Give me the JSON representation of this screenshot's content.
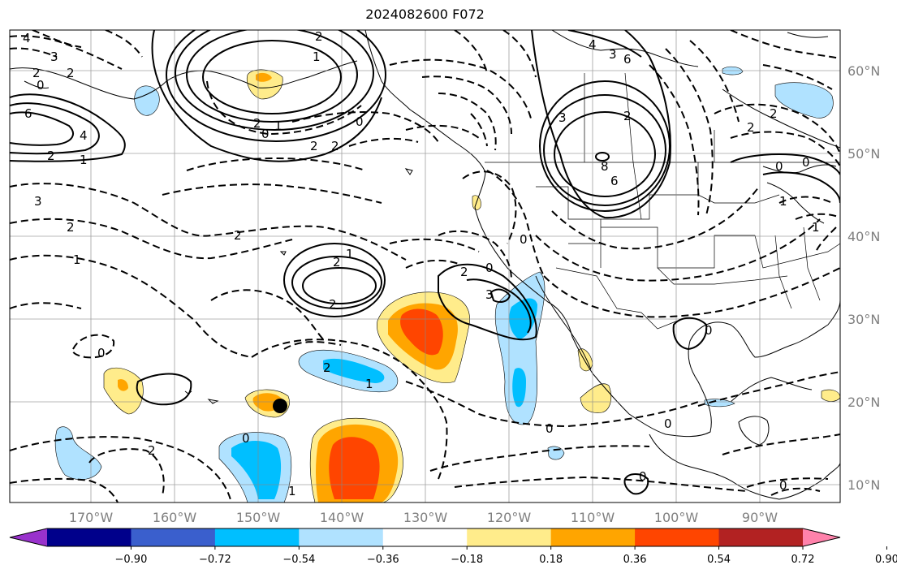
{
  "title": "2024082600 F072",
  "lon_labels": [
    "170°W",
    "160°W",
    "150°W",
    "140°W",
    "130°W",
    "120°W",
    "110°W",
    "100°W",
    "90°W"
  ],
  "lat_labels": [
    "60°N",
    "50°N",
    "40°N",
    "30°N",
    "20°N",
    "10°N"
  ],
  "colorbar": {
    "colors": [
      "#9932cc",
      "#00008b",
      "#3a5fcd",
      "#00bfff",
      "#b0e2ff",
      "#ffffff",
      "#ffec8b",
      "#ffa500",
      "#ff4500",
      "#b22222",
      "#ff82ab"
    ],
    "tick_labels": [
      "−0.90",
      "−0.72",
      "−0.54",
      "−0.36",
      "−0.18",
      "0.18",
      "0.36",
      "0.54",
      "0.72",
      "0.90"
    ]
  },
  "contour_labels": [
    "4",
    "3",
    "2",
    "0",
    "2",
    "6",
    "4",
    "2",
    "1",
    "3",
    "2",
    "2",
    "1",
    "0",
    "2",
    "2",
    "2",
    "0",
    "1",
    "2",
    "1",
    "2",
    "2",
    "2",
    "0",
    "1",
    "0",
    "2",
    "1",
    "1",
    "3",
    "2",
    "4",
    "3",
    "6",
    "3",
    "2",
    "0",
    "0",
    "0",
    "1",
    "0",
    "0",
    "0",
    "1",
    "8",
    "6",
    "2",
    "0",
    "2",
    "0",
    "0"
  ]
}
